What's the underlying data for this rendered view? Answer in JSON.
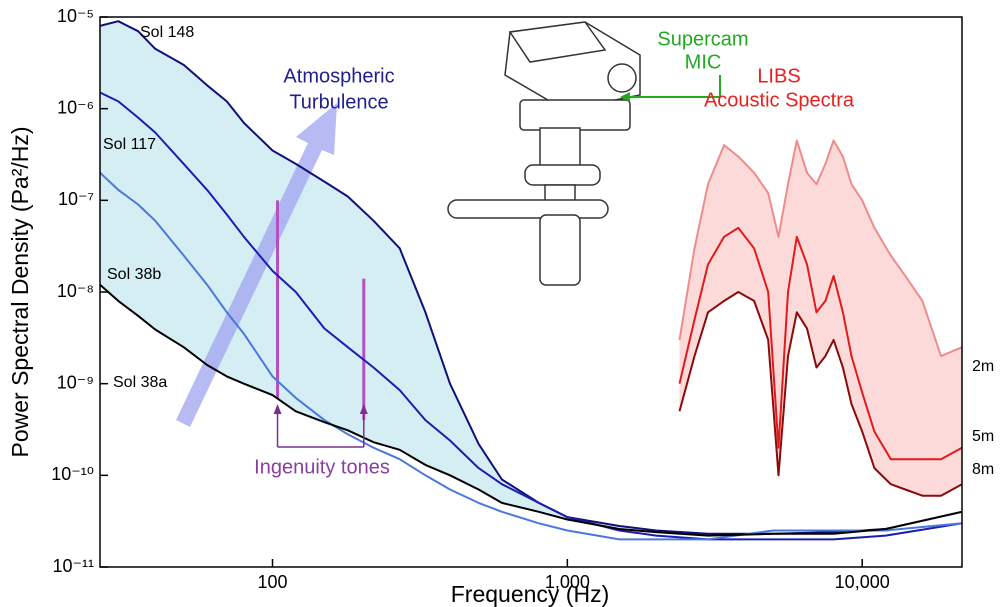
{
  "chart_data": {
    "type": "line",
    "xlabel": "Frequency (Hz)",
    "ylabel": "Power Spectral Density (Pa²/Hz)",
    "xscale": "log",
    "yscale": "log",
    "xlim": [
      26,
      21800
    ],
    "ylim": [
      1e-11,
      1e-05
    ],
    "xticks": [
      100,
      {
        "value": 1000,
        "label": "1,000"
      },
      {
        "value": 10000,
        "label": "10,000"
      }
    ],
    "yticks": [
      {
        "value": 1e-11,
        "label": "10⁻¹¹"
      },
      {
        "value": 1e-10,
        "label": "10⁻¹⁰"
      },
      {
        "value": 1e-09,
        "label": "10⁻⁹"
      },
      {
        "value": 1e-08,
        "label": "10⁻⁸"
      },
      {
        "value": 1e-07,
        "label": "10⁻⁷"
      },
      {
        "value": 1e-06,
        "label": "10⁻⁶"
      },
      {
        "value": 1e-05,
        "label": "10⁻⁵"
      }
    ],
    "series": [
      {
        "name": "Sol 148",
        "color": "#10107a",
        "x": [
          26,
          30,
          35,
          40,
          50,
          60,
          70,
          80,
          100,
          120,
          150,
          180,
          220,
          270,
          330,
          400,
          500,
          600,
          800,
          1000,
          1500,
          2000,
          3000,
          5000,
          8000,
          12000,
          21800
        ],
        "values": [
          8e-06,
          9e-06,
          7e-06,
          4.5e-06,
          3e-06,
          1.8e-06,
          1.2e-06,
          7e-07,
          3.5e-07,
          2.5e-07,
          1.6e-07,
          1.1e-07,
          6e-08,
          3e-08,
          6e-09,
          1e-09,
          2.2e-10,
          9e-11,
          5e-11,
          3.5e-11,
          2.8e-11,
          2.5e-11,
          2.3e-11,
          2.3e-11,
          2.4e-11,
          2.6e-11,
          4e-11
        ]
      },
      {
        "name": "Sol 117",
        "color": "#1c1cb0",
        "x": [
          26,
          30,
          35,
          40,
          50,
          60,
          70,
          80,
          100,
          120,
          150,
          180,
          220,
          270,
          330,
          400,
          500,
          600,
          800,
          1000,
          1500,
          2000,
          3000,
          5000,
          8000,
          12000,
          21800
        ],
        "values": [
          1.5e-06,
          1.2e-06,
          8e-07,
          5.5e-07,
          2.5e-07,
          1.3e-07,
          7e-08,
          4e-08,
          1.7e-08,
          1e-08,
          4e-09,
          2.5e-09,
          1.5e-09,
          8.5e-10,
          4e-10,
          2.4e-10,
          1.2e-10,
          8e-11,
          5e-11,
          3.5e-11,
          2.5e-11,
          2.2e-11,
          2e-11,
          2e-11,
          2e-11,
          2.2e-11,
          3e-11
        ]
      },
      {
        "name": "Sol 38b",
        "color": "#4a78dc",
        "x": [
          26,
          30,
          35,
          40,
          50,
          60,
          70,
          80,
          100,
          120,
          150,
          180,
          220,
          270,
          330,
          400,
          500,
          600,
          800,
          1000,
          1500,
          2000,
          3000,
          5000,
          8000,
          12000,
          21800
        ],
        "values": [
          2e-07,
          1.3e-07,
          9e-08,
          6e-08,
          2.5e-08,
          1.2e-08,
          6e-09,
          3.5e-09,
          1.2e-09,
          7e-10,
          4e-10,
          2.8e-10,
          2e-10,
          1.5e-10,
          1e-10,
          7e-11,
          5e-11,
          4e-11,
          3e-11,
          2.5e-11,
          2e-11,
          2e-11,
          2e-11,
          2.5e-11,
          2.5e-11,
          2.5e-11,
          3e-11
        ]
      },
      {
        "name": "Sol 38a",
        "color": "#000000",
        "x": [
          26,
          30,
          35,
          40,
          50,
          60,
          70,
          80,
          100,
          120,
          150,
          180,
          220,
          270,
          330,
          400,
          500,
          600,
          800,
          1000,
          1500,
          2000,
          3000,
          5000,
          8000,
          12000,
          21800
        ],
        "values": [
          1.2e-08,
          8e-09,
          5.5e-09,
          3.9e-09,
          2.5e-09,
          1.6e-09,
          1.2e-09,
          1e-09,
          7.5e-10,
          5e-10,
          3.8e-10,
          3.1e-10,
          2.3e-10,
          1.9e-10,
          1.3e-10,
          1e-10,
          7e-11,
          5e-11,
          4e-11,
          3.3e-11,
          2.6e-11,
          2.4e-11,
          2.2e-11,
          2.3e-11,
          2.3e-11,
          2.6e-11,
          4e-11
        ]
      },
      {
        "name": "2m",
        "color": "#ef8b8b",
        "x": [
          2400,
          2700,
          3000,
          3400,
          3800,
          4300,
          4800,
          5200,
          5600,
          6000,
          6500,
          7000,
          7500,
          8000,
          8600,
          9200,
          10000,
          11000,
          12500,
          14000,
          16000,
          18500,
          21800
        ],
        "values": [
          3e-09,
          3e-08,
          1.5e-07,
          4e-07,
          3e-07,
          2e-07,
          1.2e-07,
          4e-08,
          1.5e-07,
          4.5e-07,
          2e-07,
          1.5e-07,
          2.5e-07,
          4.5e-07,
          3e-07,
          1.5e-07,
          1e-07,
          5e-08,
          2.5e-08,
          1.5e-08,
          8e-09,
          2e-09,
          2.5e-09
        ]
      },
      {
        "name": "5m",
        "color": "#e41a1a",
        "x": [
          2400,
          2700,
          3000,
          3400,
          3800,
          4300,
          4800,
          5200,
          5600,
          6000,
          6500,
          7000,
          7500,
          8000,
          8600,
          9200,
          10000,
          11000,
          12500,
          14000,
          16000,
          18500,
          21800
        ],
        "values": [
          1e-09,
          5e-09,
          2e-08,
          4e-08,
          5e-08,
          3e-08,
          1e-08,
          2e-10,
          1e-08,
          4e-08,
          2e-08,
          6e-09,
          8e-09,
          1.5e-08,
          6e-09,
          2e-09,
          8e-10,
          3e-10,
          1.5e-10,
          1.5e-10,
          1.5e-10,
          1.5e-10,
          2e-10
        ]
      },
      {
        "name": "8m",
        "color": "#8b0a0a",
        "x": [
          2400,
          2700,
          3000,
          3400,
          3800,
          4300,
          4800,
          5200,
          5600,
          6000,
          6500,
          7000,
          7500,
          8000,
          8600,
          9200,
          10000,
          11000,
          12500,
          14000,
          16000,
          18500,
          21800
        ],
        "values": [
          5e-10,
          2e-09,
          6e-09,
          8e-09,
          1e-08,
          8e-09,
          3e-09,
          1e-10,
          2e-09,
          6e-09,
          4e-09,
          1.5e-09,
          2e-09,
          3e-09,
          1.5e-09,
          6e-10,
          3e-10,
          1.2e-10,
          8e-11,
          7e-11,
          6e-11,
          6e-11,
          8e-11
        ]
      }
    ],
    "fills": [
      {
        "between": [
          0,
          3
        ],
        "color": "#d5eef4"
      },
      {
        "between": [
          4,
          6
        ],
        "color": "#fcdada"
      }
    ],
    "tones": {
      "x": [
        104,
        204
      ],
      "top": [
        1e-07,
        1.4e-08
      ],
      "bottom": [
        7e-10,
        4e-10
      ],
      "color": "#b34fc0"
    },
    "annotations": {
      "turbulence": [
        "Atmospheric",
        "Turbulence"
      ],
      "mic": [
        "Supercam",
        "MIC"
      ],
      "libs": [
        "LIBS",
        "Acoustic Spectra"
      ],
      "tones": "Ingenuity tones"
    }
  }
}
